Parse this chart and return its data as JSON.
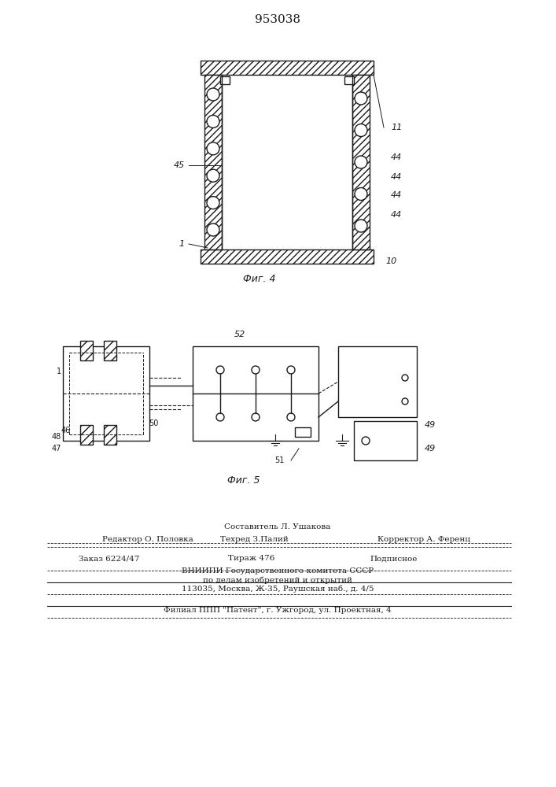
{
  "patent_number": "953038",
  "fig4_label": "Фиг. 4",
  "fig5_label": "Фиг. 5",
  "background_color": "#f5f5f0",
  "line_color": "#1a1a1a",
  "hatch_color": "#1a1a1a",
  "bottom_text_line1": "Составитель Л. Ушакова",
  "bottom_text_line2": "Редактор О. Половка        Техред З.Палий                Корректор А. Ференц",
  "bottom_text_line3": "Заказ 6224/47          Тираж 476                    Подписное",
  "bottom_text_line4": "ВНИИПИ Государственного комитета СССР",
  "bottom_text_line5": "по делам изобретений и открытий",
  "bottom_text_line6": "113035, Москва, Ж-35, Раушская наб., д. 4/5",
  "bottom_text_line7": "Филиал ППП \"Патент\", г. Ужгород, ул. Проектная, 4"
}
